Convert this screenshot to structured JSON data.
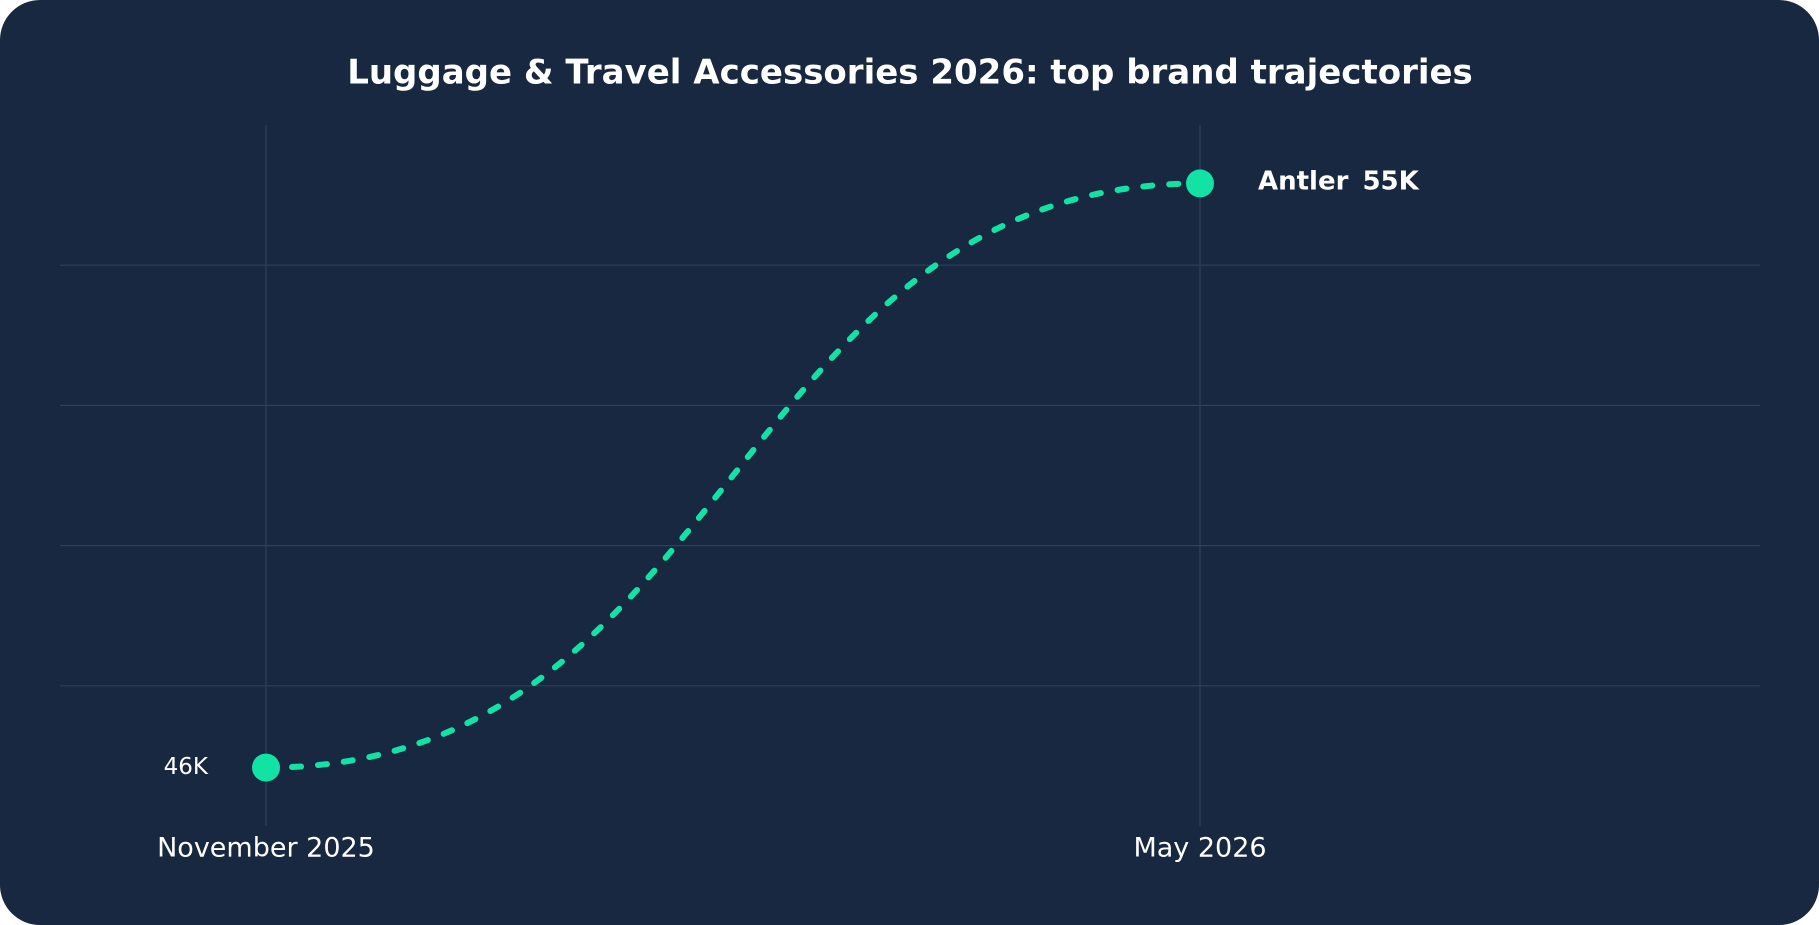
{
  "chart_data": {
    "type": "line",
    "title": "Luggage & Travel Accessories 2026: top brand trajectories",
    "categories": [
      "November 2025",
      "May 2026"
    ],
    "series": [
      {
        "name": "Antler",
        "color": "#12e3a5",
        "values": [
          46000,
          55000
        ],
        "value_labels": [
          "46K",
          "55K"
        ]
      }
    ],
    "ylim": [
      45100,
      55900
    ],
    "grid": true
  }
}
